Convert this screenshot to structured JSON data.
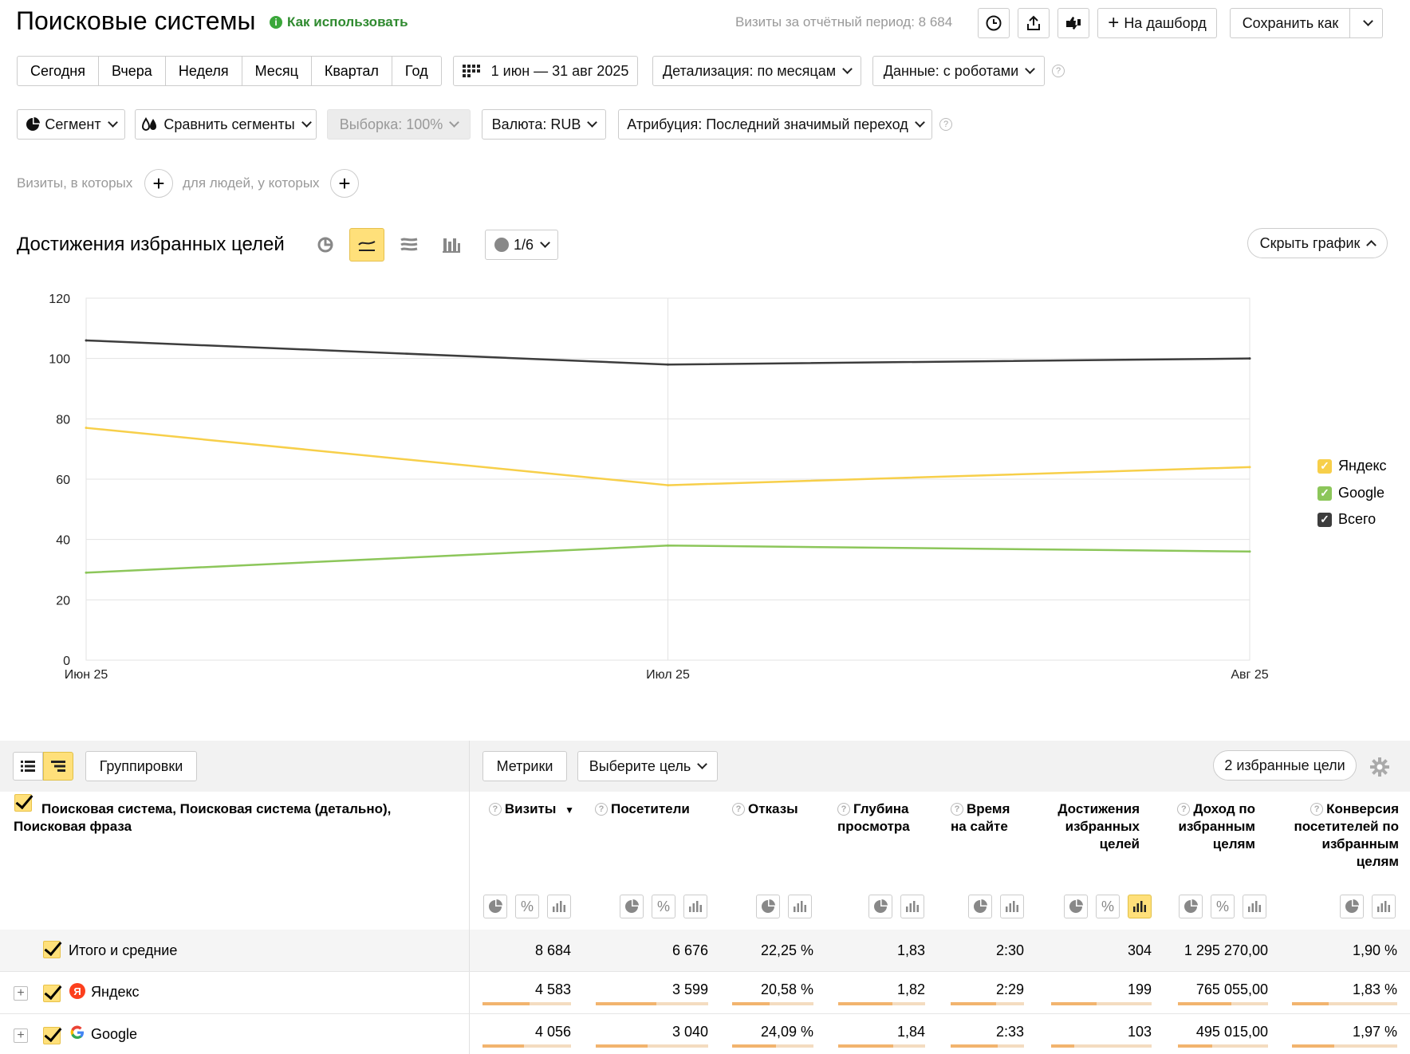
{
  "header": {
    "title": "Поисковые системы",
    "how_to_use": "Как использовать",
    "visits_summary": "Визиты за отчётный период: 8 684",
    "add_dashboard": "На дашборд",
    "save_as": "Сохранить как"
  },
  "period_tabs": [
    "Сегодня",
    "Вчера",
    "Неделя",
    "Месяц",
    "Квартал",
    "Год"
  ],
  "date_range": "1 июн — 31 авг 2025",
  "detail": "Детализация: по месяцам",
  "data_mode": "Данные: с роботами",
  "filters": {
    "segment": "Сегмент",
    "compare": "Сравнить сегменты",
    "sample": "Выборка: 100%",
    "currency": "Валюта: RUB",
    "attribution": "Атрибуция: Последний значимый переход"
  },
  "conditions": {
    "visits_label": "Визиты, в которых",
    "people_label": "для людей, у которых"
  },
  "chart_header": {
    "title": "Достижения избранных целей",
    "annotations": "1/6",
    "hide_chart": "Скрыть график"
  },
  "chart_data": {
    "type": "line",
    "x": [
      "Июн 25",
      "Июл 25",
      "Авг 25"
    ],
    "x_tick_labels": [
      "Июн 25",
      "Июл 25",
      "Авг 25"
    ],
    "ylim": [
      0,
      120
    ],
    "yticks": [
      0,
      20,
      40,
      60,
      80,
      100,
      120
    ],
    "grid": true,
    "legend_position": "right",
    "series": [
      {
        "name": "Яндекс",
        "values": [
          77,
          58,
          64
        ],
        "color": "#f7cf4a"
      },
      {
        "name": "Google",
        "values": [
          29,
          38,
          36
        ],
        "color": "#8cc65a"
      },
      {
        "name": "Всего",
        "values": [
          106,
          98,
          100
        ],
        "color": "#3d3d3d"
      }
    ]
  },
  "table_toolbar": {
    "groupings": "Группировки",
    "metrics": "Метрики",
    "choose_goal": "Выберите цель",
    "favorite_goals": "2 избранные цели"
  },
  "table": {
    "dimension_header": "Поисковая система, Поисковая система (детально), Поисковая фраза",
    "columns": [
      "Визиты",
      "Посетители",
      "Отказы",
      "Глубина просмотра",
      "Время на сайте",
      "Достижения избранных целей",
      "Доход по избранным целям",
      "Конверсия посетителей по избранным целям"
    ],
    "total": {
      "label": "Итого и средние",
      "values": [
        "8 684",
        "6 676",
        "22,25 %",
        "1,83",
        "2:30",
        "304",
        "1 295 270,00",
        "1,90 %"
      ]
    },
    "rows": [
      {
        "label": "Яндекс",
        "icon": "yandex-logo",
        "values": [
          "4 583",
          "3 599",
          "20,58 %",
          "1,82",
          "2:29",
          "199",
          "765 055,00",
          "1,83 %"
        ],
        "bars": [
          0.53,
          0.54,
          0.46,
          0.62,
          0.62,
          0.45,
          0.59,
          0.35
        ]
      },
      {
        "label": "Google",
        "icon": "google-logo",
        "values": [
          "4 056",
          "3 040",
          "24,09 %",
          "1,84",
          "2:33",
          "103",
          "495 015,00",
          "1,97 %"
        ],
        "bars": [
          0.47,
          0.46,
          0.54,
          0.63,
          0.64,
          0.23,
          0.38,
          0.4
        ]
      }
    ]
  }
}
